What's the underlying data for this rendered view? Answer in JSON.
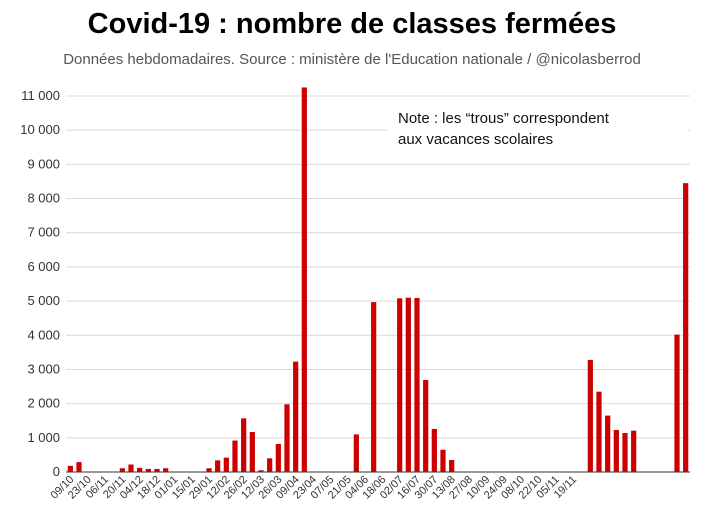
{
  "chart_data": {
    "type": "bar",
    "title": "Covid-19 : nombre de classes fermées",
    "subtitle": "Données hebdomadaires. Source : ministère de l'Education nationale  / @nicolasberrod",
    "annotation": [
      "Note : les “trous” correspondent",
      "aux vacances scolaires"
    ],
    "ylim": [
      0,
      11000
    ],
    "yticks": [
      0,
      1000,
      2000,
      3000,
      4000,
      5000,
      6000,
      7000,
      8000,
      9000,
      10000,
      11000
    ],
    "ytick_labels": [
      "0",
      "1 000",
      "2 000",
      "3 000",
      "4 000",
      "5 000",
      "6 000",
      "7 000",
      "8 000",
      "9 000",
      "10 000",
      "11 000"
    ],
    "x_tick_labels": [
      "09/10",
      "23/10",
      "06/11",
      "20/11",
      "04/12",
      "18/12",
      "01/01",
      "15/01",
      "29/01",
      "12/02",
      "26/02",
      "12/03",
      "26/03",
      "09/04",
      "23/04",
      "07/05",
      "21/05",
      "04/06",
      "18/06",
      "02/07",
      "16/07",
      "30/07",
      "13/08",
      "27/08",
      "10/09",
      "24/09",
      "08/10",
      "22/10",
      "05/11",
      "19/11"
    ],
    "values": [
      180,
      290,
      0,
      0,
      0,
      0,
      110,
      220,
      120,
      90,
      90,
      110,
      0,
      0,
      0,
      0,
      110,
      340,
      420,
      920,
      1570,
      1170,
      50,
      400,
      820,
      1980,
      3230,
      11250,
      0,
      0,
      0,
      0,
      0,
      1100,
      0,
      4970,
      0,
      0,
      5080,
      5100,
      5090,
      2690,
      1260,
      650,
      350,
      0,
      0,
      0,
      0,
      0,
      0,
      0,
      0,
      0,
      0,
      0,
      0,
      0,
      0,
      0,
      3280,
      2350,
      1650,
      1230,
      1140,
      1210,
      0,
      0,
      0,
      0,
      4020,
      8450
    ],
    "bar_color": "#cc0000",
    "grid": true,
    "legend": "none"
  }
}
